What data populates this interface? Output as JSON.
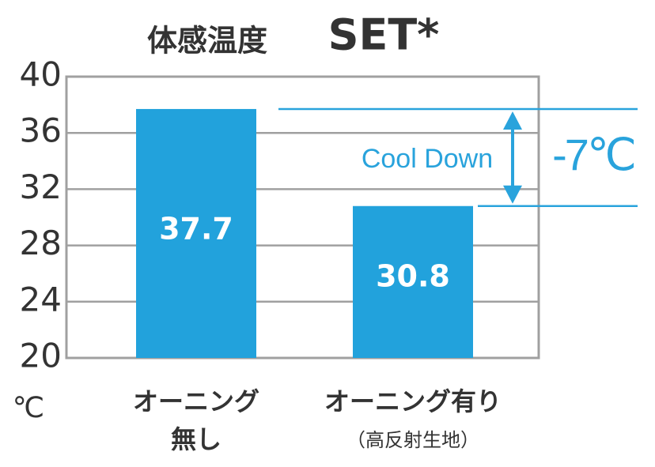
{
  "chart_data": {
    "type": "bar",
    "title": "体感温度",
    "subtitle": "SET*",
    "y_unit": "℃",
    "categories": [
      [
        "オーニング",
        "無し"
      ],
      [
        "オーニング有り",
        "（高反射生地）"
      ]
    ],
    "values": [
      37.7,
      30.8
    ],
    "color": "#22a2dc",
    "ylim": [
      20,
      40
    ],
    "yticks": [
      20,
      24,
      28,
      32,
      36,
      40
    ],
    "grid": true,
    "annotation": "Cool Down",
    "difference_label": "-7℃",
    "annotation_color": "#29a3dc"
  }
}
